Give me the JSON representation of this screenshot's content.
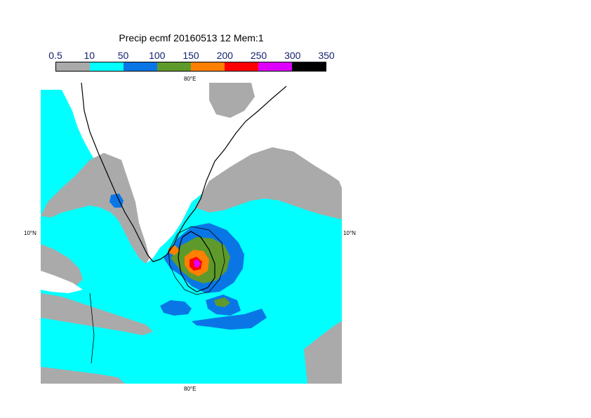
{
  "title": "Precip ecmf 20160513 12 Mem:1",
  "legend": {
    "labels": [
      "0.5",
      "10",
      "50",
      "100",
      "150",
      "200",
      "250",
      "300",
      "350"
    ],
    "colors": [
      "#aaaaaa",
      "#00ffff",
      "#0a76e6",
      "#5e9a2b",
      "#ff8000",
      "#ff0000",
      "#dd00ff",
      "#000000"
    ]
  },
  "map": {
    "lon_labels": {
      "top": "80°E",
      "bottom": "80°E"
    },
    "lat_labels": {
      "left": "10°N",
      "right": "10°N"
    },
    "colors": {
      "land": "#ffffff",
      "ocean_light": "#00ffff",
      "rain_grey": "#aaaaaa"
    }
  }
}
